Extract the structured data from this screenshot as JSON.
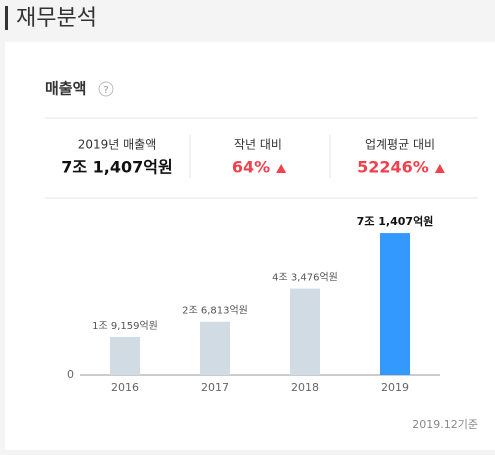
{
  "header": {
    "title": "재무분석"
  },
  "card": {
    "title": "매출액",
    "help": "?",
    "stats": [
      {
        "label": "2019년 매출액",
        "value": "7조 1,407억원"
      },
      {
        "label": "작년 대비",
        "value": "64%"
      },
      {
        "label": "업계평균 대비",
        "value": "52246%"
      }
    ],
    "footnote": "2019.12기준"
  },
  "chart_data": {
    "type": "bar",
    "categories": [
      "2016",
      "2017",
      "2018",
      "2019"
    ],
    "values": [
      19159,
      26813,
      43476,
      71407
    ],
    "value_labels": [
      "1조 9,159억원",
      "2조 6,813억원",
      "4조 3,476억원",
      "7조 1,407억원"
    ],
    "colors": [
      "#d1dbe3",
      "#d1dbe3",
      "#d1dbe3",
      "#3399ff"
    ],
    "ylim": [
      0,
      80000
    ],
    "yticks": [
      0
    ]
  }
}
